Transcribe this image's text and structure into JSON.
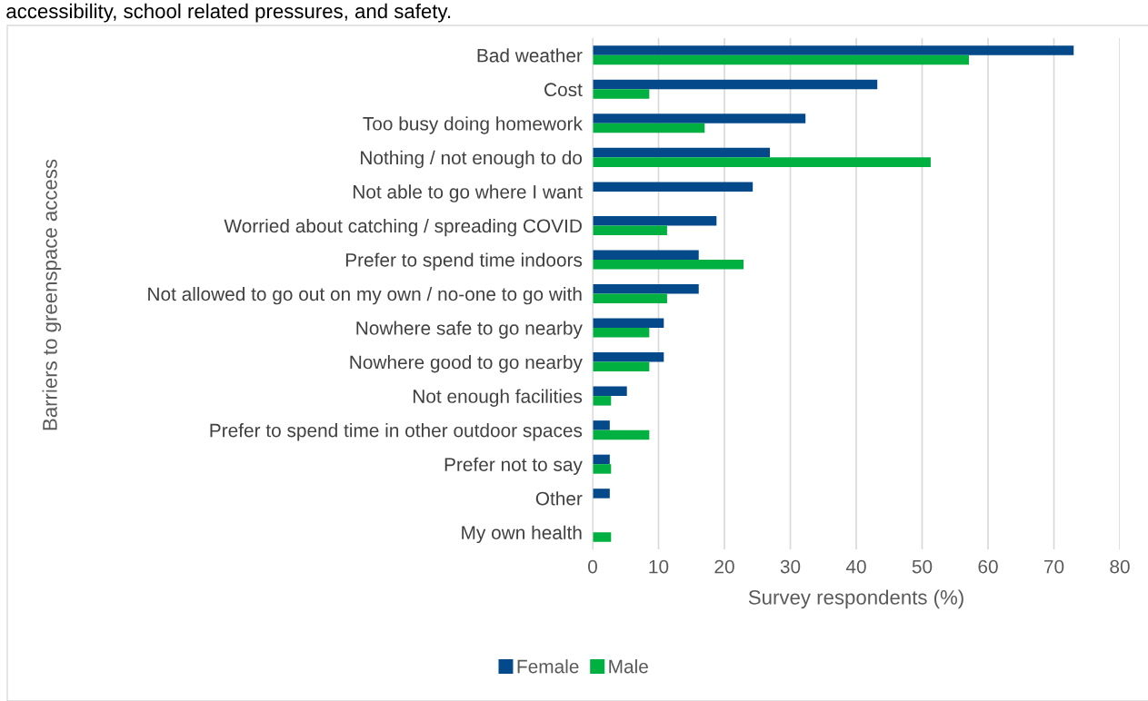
{
  "chart_data": {
    "type": "bar",
    "orientation": "horizontal",
    "subtitle": "accessibility, school related pressures, and safety.",
    "ylabel": "Barriers to greenspace access",
    "xlabel": "Survey respondents (%)",
    "categories": [
      "Bad weather",
      "Cost",
      "Too busy doing homework",
      "Nothing / not enough to do",
      "Not able to go where I want",
      "Worried about catching / spreading COVID",
      "Prefer to spend time indoors",
      "Not allowed to go out on my own / no-one to go with",
      "Nowhere safe to go nearby",
      "Nowhere good to go nearby",
      "Not enough facilities",
      "Prefer to spend time in other outdoor spaces",
      "Prefer not to say",
      "Other",
      "My own health"
    ],
    "series": [
      {
        "name": "Female",
        "color": "#044a8a",
        "values": [
          73.0,
          43.2,
          32.3,
          26.9,
          24.3,
          18.8,
          16.1,
          16.1,
          10.8,
          10.8,
          5.2,
          2.6,
          2.6,
          2.6,
          null
        ]
      },
      {
        "name": "Male",
        "color": "#00b040",
        "values": [
          57.1,
          8.6,
          17.0,
          51.3,
          null,
          11.3,
          22.9,
          11.3,
          8.6,
          8.6,
          2.8,
          8.6,
          2.8,
          null,
          2.8
        ]
      }
    ],
    "xlim": [
      0,
      80
    ],
    "xticks": [
      0,
      10,
      20,
      30,
      40,
      50,
      60,
      70,
      80
    ],
    "grid": "x",
    "legend": "bottom"
  }
}
